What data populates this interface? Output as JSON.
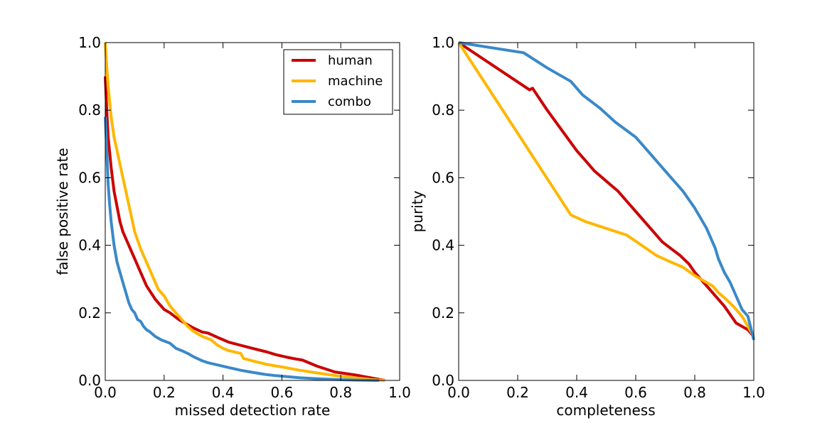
{
  "chart_data": [
    {
      "type": "line",
      "xlabel": "missed detection rate",
      "ylabel": "false positive rate",
      "xlim": [
        0.0,
        1.0
      ],
      "ylim": [
        0.0,
        1.0
      ],
      "xticks": [
        "0.0",
        "0.2",
        "0.4",
        "0.6",
        "0.8",
        "1.0"
      ],
      "yticks": [
        "0.0",
        "0.2",
        "0.4",
        "0.6",
        "0.8",
        "1.0"
      ],
      "grid": false,
      "legend_position": "upper right",
      "series": [
        {
          "name": "human",
          "color": "#cc0000",
          "x": [
            0.0,
            0.005,
            0.01,
            0.02,
            0.03,
            0.05,
            0.06,
            0.08,
            0.1,
            0.12,
            0.14,
            0.17,
            0.2,
            0.22,
            0.25,
            0.28,
            0.3,
            0.33,
            0.35,
            0.38,
            0.42,
            0.46,
            0.5,
            0.55,
            0.58,
            0.62,
            0.65,
            0.67,
            0.72,
            0.78,
            0.85,
            0.95
          ],
          "y": [
            0.9,
            0.8,
            0.72,
            0.63,
            0.56,
            0.47,
            0.44,
            0.4,
            0.36,
            0.32,
            0.28,
            0.24,
            0.21,
            0.2,
            0.18,
            0.165,
            0.155,
            0.143,
            0.14,
            0.128,
            0.113,
            0.104,
            0.095,
            0.084,
            0.076,
            0.068,
            0.063,
            0.06,
            0.042,
            0.025,
            0.016,
            0.0
          ]
        },
        {
          "name": "machine",
          "color": "#ffb700",
          "x": [
            0.0,
            0.005,
            0.01,
            0.02,
            0.03,
            0.04,
            0.05,
            0.07,
            0.1,
            0.12,
            0.14,
            0.16,
            0.18,
            0.2,
            0.22,
            0.25,
            0.28,
            0.3,
            0.33,
            0.36,
            0.38,
            0.4,
            0.42,
            0.46,
            0.47,
            0.5,
            0.55,
            0.6,
            0.66,
            0.72,
            0.8,
            0.9,
            0.95
          ],
          "y": [
            1.0,
            0.93,
            0.87,
            0.78,
            0.72,
            0.68,
            0.64,
            0.56,
            0.44,
            0.39,
            0.35,
            0.31,
            0.27,
            0.25,
            0.22,
            0.19,
            0.16,
            0.145,
            0.13,
            0.12,
            0.105,
            0.095,
            0.088,
            0.08,
            0.065,
            0.058,
            0.047,
            0.04,
            0.03,
            0.022,
            0.012,
            0.003,
            0.0
          ]
        },
        {
          "name": "combo",
          "color": "#3a89c9",
          "x": [
            0.0,
            0.005,
            0.01,
            0.015,
            0.02,
            0.03,
            0.04,
            0.05,
            0.06,
            0.07,
            0.08,
            0.09,
            0.1,
            0.11,
            0.12,
            0.13,
            0.14,
            0.15,
            0.17,
            0.19,
            0.22,
            0.24,
            0.26,
            0.28,
            0.3,
            0.33,
            0.35,
            0.38,
            0.42,
            0.46,
            0.5,
            0.54,
            0.58,
            0.62,
            0.66,
            0.72,
            0.78,
            0.85,
            0.93
          ],
          "y": [
            0.78,
            0.68,
            0.58,
            0.52,
            0.47,
            0.4,
            0.35,
            0.32,
            0.29,
            0.26,
            0.23,
            0.21,
            0.2,
            0.18,
            0.175,
            0.16,
            0.15,
            0.145,
            0.13,
            0.12,
            0.11,
            0.095,
            0.088,
            0.08,
            0.07,
            0.058,
            0.052,
            0.046,
            0.038,
            0.03,
            0.024,
            0.018,
            0.014,
            0.011,
            0.008,
            0.005,
            0.003,
            0.001,
            0.0
          ]
        }
      ]
    },
    {
      "type": "line",
      "xlabel": "completeness",
      "ylabel": "purity",
      "xlim": [
        0.0,
        1.0
      ],
      "ylim": [
        0.0,
        1.0
      ],
      "xticks": [
        "0.0",
        "0.2",
        "0.4",
        "0.6",
        "0.8",
        "1.0"
      ],
      "yticks": [
        "0.0",
        "0.2",
        "0.4",
        "0.6",
        "0.8",
        "1.0"
      ],
      "grid": false,
      "series": [
        {
          "color": "#cc0000",
          "x": [
            0.0,
            0.24,
            0.25,
            0.3,
            0.35,
            0.4,
            0.43,
            0.46,
            0.5,
            0.54,
            0.58,
            0.62,
            0.66,
            0.69,
            0.72,
            0.75,
            0.78,
            0.8,
            0.83,
            0.86,
            0.9,
            0.94,
            0.98,
            1.0
          ],
          "y": [
            1.0,
            0.86,
            0.865,
            0.8,
            0.74,
            0.68,
            0.65,
            0.62,
            0.59,
            0.56,
            0.52,
            0.48,
            0.44,
            0.41,
            0.39,
            0.37,
            0.345,
            0.32,
            0.29,
            0.26,
            0.22,
            0.17,
            0.15,
            0.13
          ]
        },
        {
          "color": "#ffb700",
          "x": [
            0.0,
            0.38,
            0.43,
            0.5,
            0.57,
            0.62,
            0.67,
            0.72,
            0.76,
            0.8,
            0.84,
            0.86,
            0.88,
            0.9,
            0.93,
            0.96,
            0.98,
            1.0
          ],
          "y": [
            1.0,
            0.49,
            0.47,
            0.45,
            0.43,
            0.4,
            0.37,
            0.35,
            0.335,
            0.31,
            0.29,
            0.28,
            0.26,
            0.245,
            0.22,
            0.19,
            0.16,
            0.13
          ]
        },
        {
          "color": "#3a89c9",
          "x": [
            0.0,
            0.22,
            0.3,
            0.38,
            0.42,
            0.48,
            0.53,
            0.6,
            0.65,
            0.68,
            0.72,
            0.76,
            0.8,
            0.84,
            0.86,
            0.87,
            0.88,
            0.9,
            0.92,
            0.94,
            0.96,
            0.98,
            1.0
          ],
          "y": [
            1.0,
            0.97,
            0.925,
            0.885,
            0.845,
            0.805,
            0.765,
            0.72,
            0.67,
            0.64,
            0.6,
            0.56,
            0.51,
            0.45,
            0.41,
            0.39,
            0.36,
            0.32,
            0.29,
            0.25,
            0.21,
            0.19,
            0.12
          ]
        }
      ]
    }
  ]
}
